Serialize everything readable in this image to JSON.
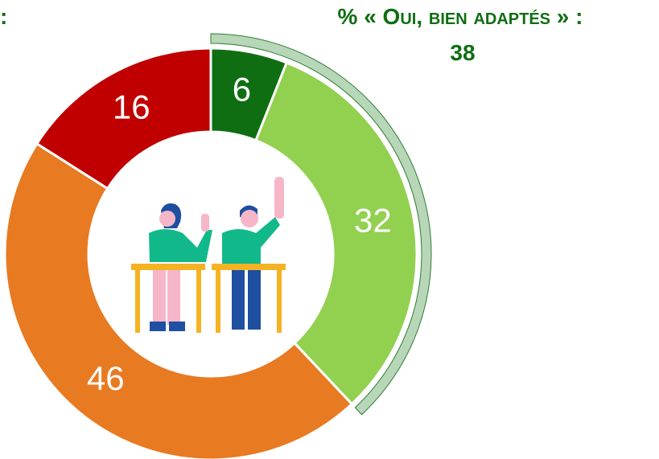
{
  "chart_data": {
    "type": "donut",
    "leading_text": ":",
    "highlight": {
      "label": "% « Oui, bien adaptés » :",
      "value": 38,
      "color": "#b8d6b8"
    },
    "categories": [
      null,
      null,
      null,
      null
    ],
    "values": [
      6,
      32,
      46,
      16
    ],
    "colors": [
      "#0f6e12",
      "#92d050",
      "#e87a22",
      "#c00000"
    ]
  }
}
